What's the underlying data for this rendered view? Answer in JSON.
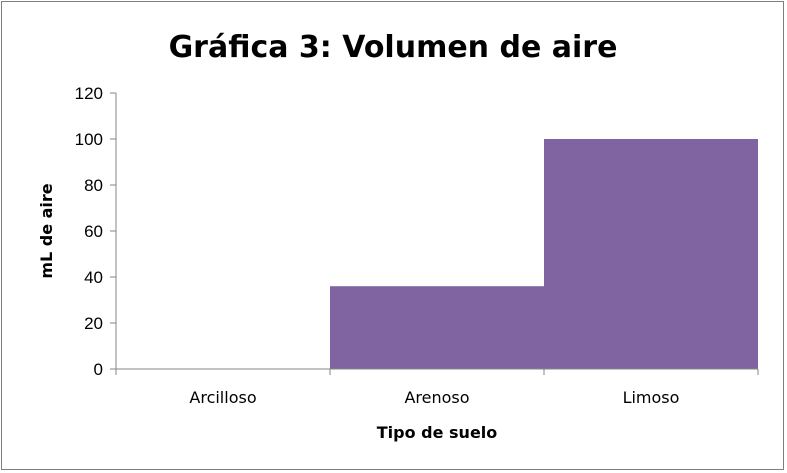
{
  "chart_data": {
    "type": "bar",
    "title": "Gráfica 3: Volumen de aire",
    "xlabel": "Tipo de suelo",
    "ylabel": "mL de aire",
    "categories": [
      "Arcilloso",
      "Arenoso",
      "Limoso"
    ],
    "values": [
      0,
      36,
      100
    ],
    "ylim": [
      0,
      120
    ],
    "yticks": [
      0,
      20,
      40,
      60,
      80,
      100,
      120
    ],
    "ytick_labels": [
      "0",
      "20",
      "40",
      "60",
      "80",
      "100",
      "120"
    ],
    "bar_color": "#8064a2",
    "grid": false,
    "legend": "none"
  }
}
